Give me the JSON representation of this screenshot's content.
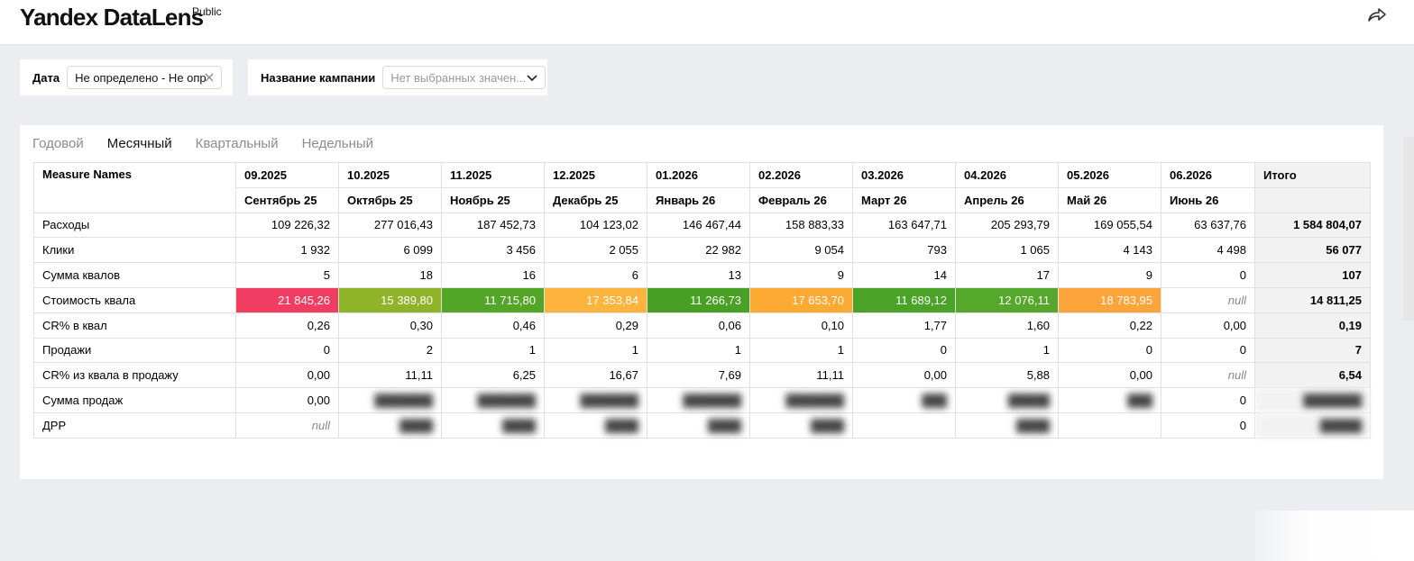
{
  "header": {
    "logo_text": "Yandex DataLens",
    "badge": "Public",
    "share_icon": "share-icon"
  },
  "filters": {
    "date": {
      "label": "Дата",
      "value": "Не определено - Не опр"
    },
    "campaign": {
      "label": "Название кампании",
      "placeholder": "Нет выбранных значен..."
    }
  },
  "tabs": [
    {
      "label": "Годовой",
      "active": false
    },
    {
      "label": "Месячный",
      "active": true
    },
    {
      "label": "Квартальный",
      "active": false
    },
    {
      "label": "Недельный",
      "active": false
    }
  ],
  "table": {
    "corner_header": "Measure Names",
    "total_header": "Итого",
    "columns": [
      {
        "code": "09.2025",
        "name": "Сентябрь 25"
      },
      {
        "code": "10.2025",
        "name": "Октябрь 25"
      },
      {
        "code": "11.2025",
        "name": "Ноябрь 25"
      },
      {
        "code": "12.2025",
        "name": "Декабрь 25"
      },
      {
        "code": "01.2026",
        "name": "Январь 26"
      },
      {
        "code": "02.2026",
        "name": "Февраль 26"
      },
      {
        "code": "03.2026",
        "name": "Март 26"
      },
      {
        "code": "04.2026",
        "name": "Апрель 26"
      },
      {
        "code": "05.2026",
        "name": "Май 26"
      },
      {
        "code": "06.2026",
        "name": "Июнь 26"
      }
    ],
    "rows": [
      {
        "name": "Расходы",
        "values": [
          "109 226,32",
          "277 016,43",
          "187 452,73",
          "104 123,02",
          "146 467,44",
          "158 883,33",
          "163 647,71",
          "205 293,79",
          "169 055,54",
          "63 637,76"
        ],
        "total": "1 584 804,07"
      },
      {
        "name": "Клики",
        "values": [
          "1 932",
          "6 099",
          "3 456",
          "2 055",
          "22 982",
          "9 054",
          "793",
          "1 065",
          "4 143",
          "4 498"
        ],
        "total": "56 077"
      },
      {
        "name": "Сумма квалов",
        "values": [
          "5",
          "18",
          "16",
          "6",
          "13",
          "9",
          "14",
          "17",
          "9",
          "0"
        ],
        "total": "107"
      },
      {
        "name": "Стоимость квала",
        "values": [
          "21 845,26",
          "15 389,80",
          "11 715,80",
          "17 353,84",
          "11 266,73",
          "17 653,70",
          "11 689,12",
          "12 076,11",
          "18 783,95",
          "null"
        ],
        "total": "14 811,25",
        "colors": [
          "#f23d63",
          "#8fb42a",
          "#52a526",
          "#fdb43c",
          "#48a024",
          "#fdaa35",
          "#4aa226",
          "#55a82b",
          "#fda43a",
          ""
        ]
      },
      {
        "name": "CR% в квал",
        "values": [
          "0,26",
          "0,30",
          "0,46",
          "0,29",
          "0,06",
          "0,10",
          "1,77",
          "1,60",
          "0,22",
          "0,00"
        ],
        "total": "0,19"
      },
      {
        "name": "Продажи",
        "values": [
          "0",
          "2",
          "1",
          "1",
          "1",
          "1",
          "0",
          "1",
          "0",
          "0"
        ],
        "total": "7"
      },
      {
        "name": "CR% из квала в продажу",
        "values": [
          "0,00",
          "11,11",
          "6,25",
          "16,67",
          "7,69",
          "11,11",
          "0,00",
          "5,88",
          "0,00",
          "null"
        ],
        "total": "6,54"
      },
      {
        "name": "Сумма продаж",
        "values": [
          "0,00",
          "███████",
          "███████",
          "███████",
          "███████",
          "███████",
          "███",
          "█████",
          "███",
          "0"
        ],
        "total": "███████",
        "blurred_from": 1
      },
      {
        "name": "ДРР",
        "values": [
          "null",
          "████",
          "████",
          "████",
          "████",
          "████",
          "",
          "████",
          "",
          "0"
        ],
        "total": "█████",
        "blurred_from": 1
      }
    ]
  },
  "colors": {
    "accent": "#ebedf0",
    "total_bg": "#f2f2f2"
  }
}
